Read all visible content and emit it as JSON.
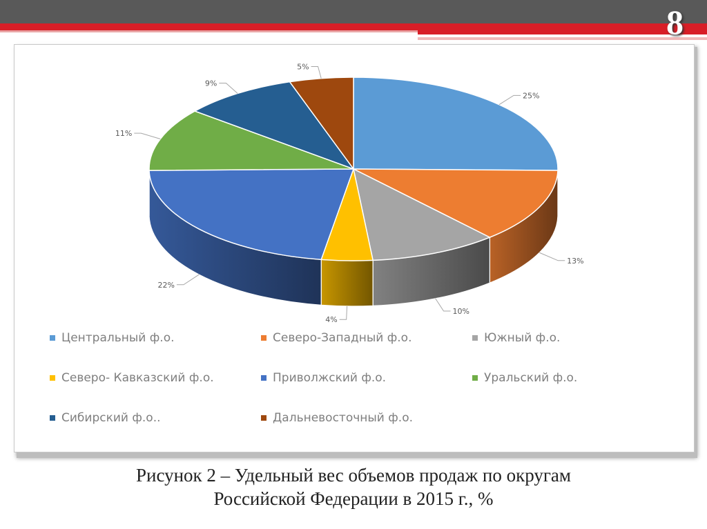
{
  "slide": {
    "number": "8"
  },
  "caption": {
    "line1": "Рисунок 2 –  Удельный вес объемов продаж по округам",
    "line2": "Российской Федерации в 2015 г., %"
  },
  "chart_data": {
    "type": "pie",
    "labels": [
      "Центральный ф.о.",
      "Северо-Западный ф.о.",
      "Южный ф.о.",
      "Северо- Кавказский ф.о.",
      "Приволжский ф.о.",
      "Уральский ф.о.",
      "Сибирский ф.о..",
      "Дальневосточный ф.о."
    ],
    "values": [
      25,
      13,
      10,
      4,
      22,
      11,
      9,
      5
    ],
    "data_labels": [
      "25%",
      "13%",
      "10%",
      "4%",
      "22%",
      "11%",
      "9%",
      "5%"
    ],
    "colors": [
      "#5b9bd5",
      "#ed7d31",
      "#a5a5a5",
      "#ffc000",
      "#4472c4",
      "#70ad47",
      "#255e91",
      "#9e480e"
    ],
    "legend_position": "bottom",
    "style": "3d"
  }
}
